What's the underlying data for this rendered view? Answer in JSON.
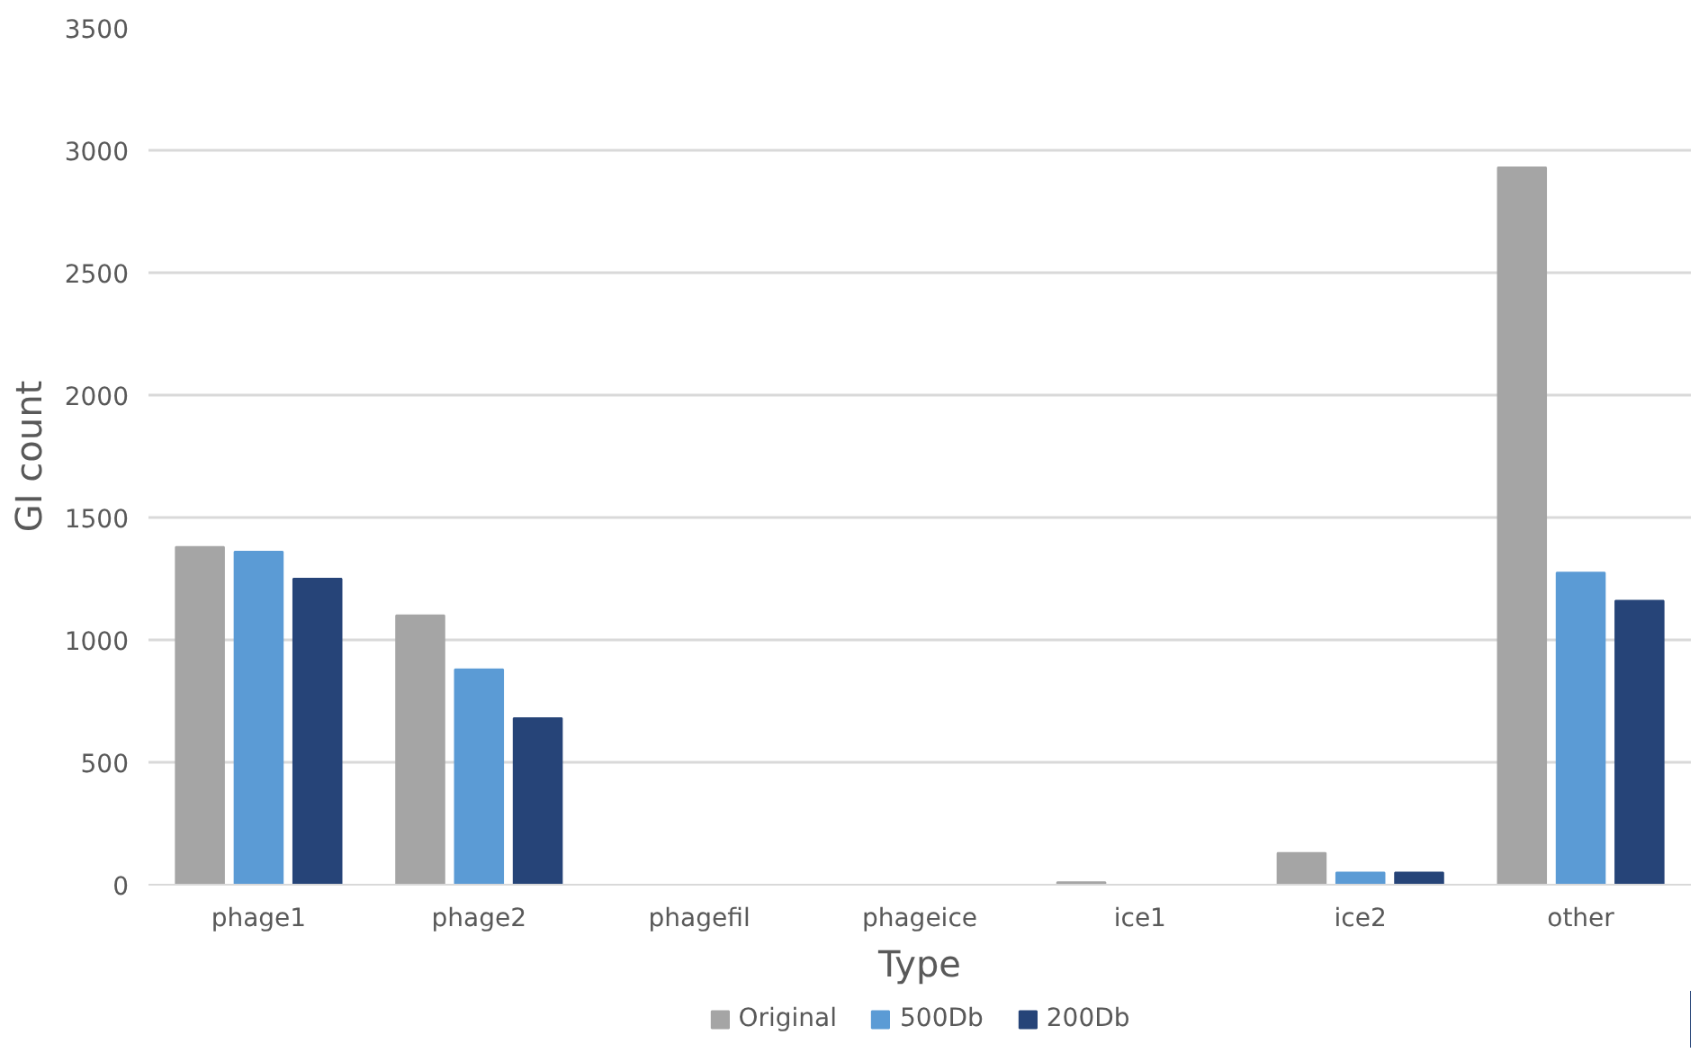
{
  "chart_data": {
    "type": "bar",
    "xlabel": "Type",
    "ylabel": "GI count",
    "categories": [
      "phage1",
      "phage2",
      "phagefil",
      "phageice",
      "ice1",
      "ice2",
      "other"
    ],
    "series": [
      {
        "name": "Original",
        "color": "#a5a5a5",
        "values": [
          1380,
          1100,
          0,
          0,
          10,
          130,
          2930
        ]
      },
      {
        "name": "500Db",
        "color": "#5b9bd5",
        "values": [
          1360,
          880,
          0,
          0,
          0,
          50,
          1275
        ]
      },
      {
        "name": "200Db",
        "color": "#264478",
        "values": [
          1250,
          680,
          0,
          0,
          0,
          50,
          1160
        ]
      }
    ],
    "ylim": [
      0,
      3500
    ],
    "yticks": [
      0,
      500,
      1000,
      1500,
      2000,
      2500,
      3000,
      3500
    ],
    "grid": "y",
    "legend": "bottom"
  }
}
